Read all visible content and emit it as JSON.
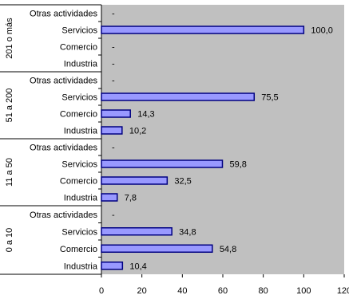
{
  "chart_data": {
    "type": "bar",
    "orientation": "horizontal",
    "title": "",
    "xlabel": "",
    "ylabel": "",
    "xlim": [
      0,
      120
    ],
    "xticks": [
      "0",
      "20",
      "40",
      "60",
      "80",
      "100",
      "120"
    ],
    "grid": false,
    "legend": "none",
    "colors": {
      "plot_background": "#c0c0c0",
      "bar_fill": "#9999ff",
      "bar_stroke": "#000080",
      "axis": "#000000"
    },
    "groups": [
      {
        "label": "201 o más",
        "rows": [
          {
            "category": "Otras actividades",
            "value": null,
            "label": "-"
          },
          {
            "category": "Servicios",
            "value": 100.0,
            "label": "100,0"
          },
          {
            "category": "Comercio",
            "value": null,
            "label": "-"
          },
          {
            "category": "Industria",
            "value": null,
            "label": "-"
          }
        ]
      },
      {
        "label": "51 a 200",
        "rows": [
          {
            "category": "Otras actividades",
            "value": null,
            "label": "-"
          },
          {
            "category": "Servicios",
            "value": 75.5,
            "label": "75,5"
          },
          {
            "category": "Comercio",
            "value": 14.3,
            "label": "14,3"
          },
          {
            "category": "Industria",
            "value": 10.2,
            "label": "10,2"
          }
        ]
      },
      {
        "label": "11 a 50",
        "rows": [
          {
            "category": "Otras actividades",
            "value": null,
            "label": "-"
          },
          {
            "category": "Servicios",
            "value": 59.8,
            "label": "59,8"
          },
          {
            "category": "Comercio",
            "value": 32.5,
            "label": "32,5"
          },
          {
            "category": "Industria",
            "value": 7.8,
            "label": "7,8"
          }
        ]
      },
      {
        "label": "0 a 10",
        "rows": [
          {
            "category": "Otras actividades",
            "value": null,
            "label": "-"
          },
          {
            "category": "Servicios",
            "value": 34.8,
            "label": "34,8"
          },
          {
            "category": "Comercio",
            "value": 54.8,
            "label": "54,8"
          },
          {
            "category": "Industria",
            "value": 10.4,
            "label": "10,4"
          }
        ]
      }
    ]
  }
}
